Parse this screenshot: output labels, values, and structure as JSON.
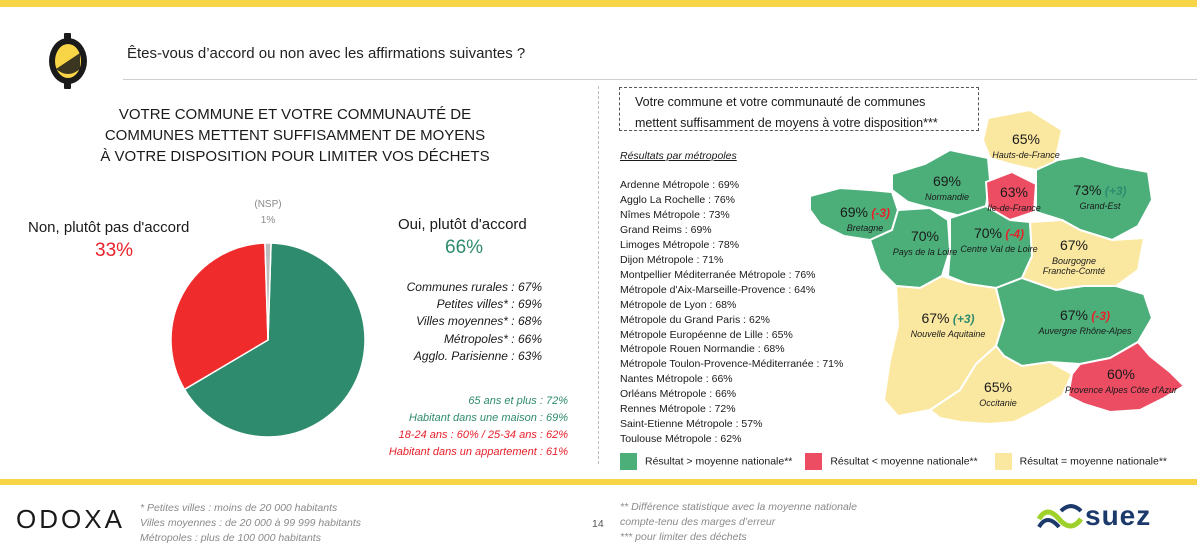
{
  "header": {
    "question": "Êtes-vous d’accord ou non avec les affirmations suivantes ?"
  },
  "left": {
    "title_line1": "VOTRE COMMUNE ET VOTRE COMMUNAUTÉ DE",
    "title_line2": "COMMUNES METTENT SUFFISAMMENT DE MOYENS",
    "title_line3": "À VOTRE DISPOSITION POUR LIMITER VOS DÉCHETS",
    "non_label": "Non, plutôt pas d'accord",
    "non_pct": "33%",
    "nsp_label": "(NSP)",
    "nsp_pct": "1%",
    "oui_label": "Oui, plutôt d'accord",
    "oui_pct": "66%",
    "segments": [
      "Communes rurales : 67%",
      "Petites villes* : 69%",
      "Villes moyennes* : 68%",
      "Métropoles* : 66%",
      "Agglo. Parisienne : 63%"
    ],
    "ages": [
      "65 ans et plus : 72%",
      "Habitant dans une maison : 69%",
      "18-24 ans : 60% / 25-34 ans : 62%",
      "Habitant dans un appartement : 61%"
    ]
  },
  "chart_data": [
    {
      "type": "pie",
      "title": "",
      "slices": [
        {
          "label": "Oui, plutôt d'accord",
          "value": 66,
          "color": "#2e8b6e"
        },
        {
          "label": "Non, plutôt pas d'accord",
          "value": 33,
          "color": "#ef2b2b"
        },
        {
          "label": "(NSP)",
          "value": 1,
          "color": "#bdbdbd"
        }
      ]
    }
  ],
  "right": {
    "box_line1": "Votre commune et votre communauté de communes",
    "box_line2": "mettent suffisamment de moyens à votre disposition***",
    "results_head": "Résultats par métropoles",
    "metros": [
      "Ardenne Métropole : 69%",
      "Agglo La Rochelle : 76%",
      "Nîmes Métropole : 73%",
      "Grand Reims : 69%",
      "Limoges Métropole : 78%",
      "Dijon Métropole : 71%",
      "Montpellier Méditerranée Métropole : 76%",
      "Métropole d'Aix-Marseille-Provence : 64%",
      "Métropole de Lyon : 68%",
      "Métropole du Grand Paris : 62%",
      "Métropole Européenne de Lille : 65%",
      "Métropole Rouen Normandie : 68%",
      "Métropole Toulon-Provence-Méditerranée : 71%",
      "Nantes Métropole : 66%",
      "Orléans Métropole : 66%",
      "Rennes Métropole : 72%",
      "Saint-Etienne Métropole : 57%",
      "Toulouse Métropole : 62%"
    ],
    "legend": [
      {
        "label": "Résultat > moyenne nationale**",
        "color": "#4caf7a"
      },
      {
        "label": "Résultat < moyenne nationale**",
        "color": "#ec4d63"
      },
      {
        "label": "Résultat = moyenne nationale**",
        "color": "#fbe8a0"
      }
    ],
    "regions": [
      {
        "pct": "65%",
        "delta": "",
        "name": "Hauts-de-France",
        "status": "equal"
      },
      {
        "pct": "69%",
        "delta": "",
        "name": "Normandie",
        "status": "above"
      },
      {
        "pct": "63%",
        "delta": "",
        "name": "Ile-de-France",
        "status": "below"
      },
      {
        "pct": "73%",
        "delta": "(+3)",
        "name": "Grand-Est",
        "status": "above"
      },
      {
        "pct": "69%",
        "delta": "(-3)",
        "name": "Bretagne",
        "status": "above"
      },
      {
        "pct": "70%",
        "delta": "",
        "name": "Pays de la Loire",
        "status": "above"
      },
      {
        "pct": "70%",
        "delta": "(-4)",
        "name": "Centre Val de Loire",
        "status": "above"
      },
      {
        "pct": "67%",
        "delta": "",
        "name": "Bourgogne Franche-Comté",
        "status": "equal"
      },
      {
        "pct": "67%",
        "delta": "(+3)",
        "name": "Nouvelle Aquitaine",
        "status": "equal"
      },
      {
        "pct": "67%",
        "delta": "(-3)",
        "name": "Auvergne Rhône-Alpes",
        "status": "above"
      },
      {
        "pct": "65%",
        "delta": "",
        "name": "Occitanie",
        "status": "equal"
      },
      {
        "pct": "60%",
        "delta": "",
        "name": "Provence Alpes Côte d'Azur",
        "status": "below"
      }
    ]
  },
  "footer": {
    "logo_left": "ODOXA",
    "note_left_1": "* Petites villes : moins de 20 000 habitants",
    "note_left_2": "Villes moyennes : de 20 000 à 99 999 habitants",
    "note_left_3": "Métropoles : plus de 100 000 habitants",
    "page": "14",
    "note_right_1": "** Différence statistique avec la moyenne nationale",
    "note_right_2": "compte-tenu des marges d’erreur",
    "note_right_3": "*** pour limiter des déchets",
    "logo_right": "suez"
  }
}
